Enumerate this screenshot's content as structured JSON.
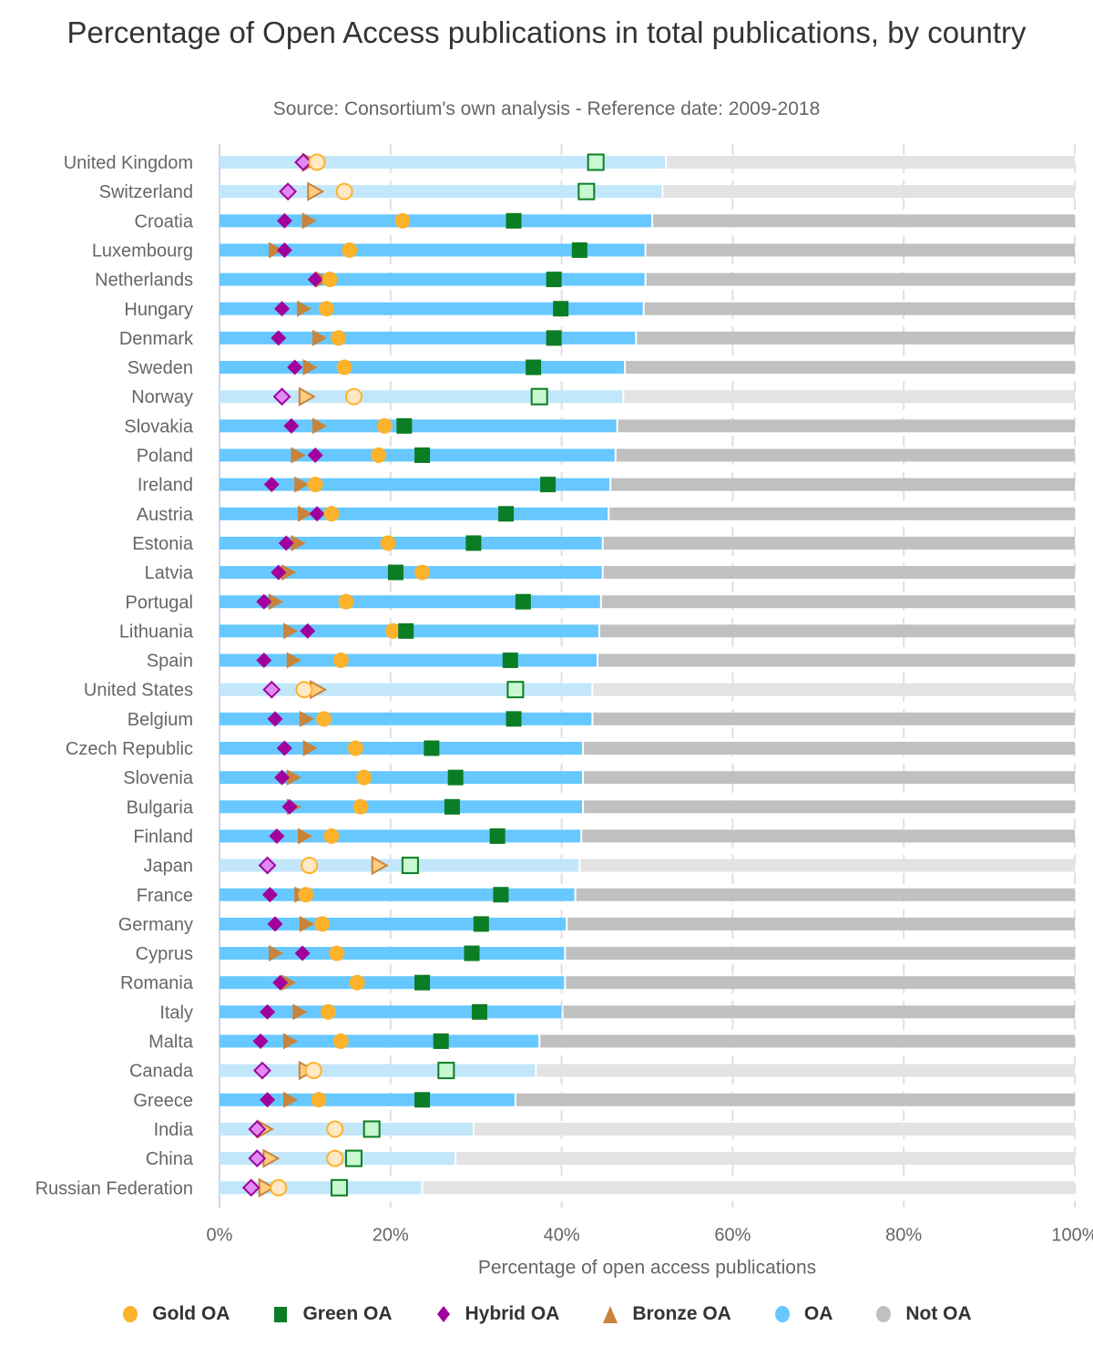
{
  "chart_data": {
    "type": "bar",
    "subtype": "horizontal stacked bar with overlaid markers",
    "title": "Percentage of Open Access publications in total publications, by country",
    "subtitle": "Source: Consortium's own analysis - Reference date: 2009-2018",
    "xlabel": "Percentage of open access publications",
    "ylabel": "",
    "xlim": [
      0,
      100
    ],
    "x_ticks": [
      "0%",
      "20%",
      "40%",
      "60%",
      "80%",
      "100%"
    ],
    "x_tick_values": [
      0,
      20,
      40,
      60,
      80,
      100
    ],
    "grid": "vertical dashed",
    "legend_position": "bottom",
    "legend": [
      {
        "name": "Gold OA",
        "symbol": "circle",
        "color": "#FDB22B"
      },
      {
        "name": "Green OA",
        "symbol": "square",
        "color": "#0B7D24"
      },
      {
        "name": "Hybrid OA",
        "symbol": "diamond",
        "color": "#A2009C"
      },
      {
        "name": "Bronze OA",
        "symbol": "triangle",
        "color": "#C8843A"
      },
      {
        "name": "OA",
        "symbol": "circle",
        "color": "#66C8FF"
      },
      {
        "name": "Not OA",
        "symbol": "circle",
        "color": "#C0C0C0"
      }
    ],
    "faded_colors": {
      "OA": "#C2E6FA",
      "Not OA": "#E3E3E3",
      "Gold OA": "#FFE8C4",
      "Green OA": "#C9F7CF",
      "Hybrid OA": "#E08AF4",
      "Bronze OA": "#FFCC80"
    },
    "categories": [
      "United Kingdom",
      "Switzerland",
      "Croatia",
      "Luxembourg",
      "Netherlands",
      "Hungary",
      "Denmark",
      "Sweden",
      "Norway",
      "Slovakia",
      "Poland",
      "Ireland",
      "Austria",
      "Estonia",
      "Latvia",
      "Portugal",
      "Lithuania",
      "Spain",
      "United States",
      "Belgium",
      "Czech Republic",
      "Slovenia",
      "Bulgaria",
      "Finland",
      "Japan",
      "France",
      "Germany",
      "Cyprus",
      "Romania",
      "Italy",
      "Malta",
      "Canada",
      "Greece",
      "India",
      "China",
      "Russian Federation"
    ],
    "highlighted": [
      false,
      false,
      true,
      true,
      true,
      true,
      true,
      true,
      false,
      true,
      true,
      true,
      true,
      true,
      true,
      true,
      true,
      true,
      false,
      true,
      true,
      true,
      true,
      true,
      false,
      true,
      true,
      true,
      true,
      true,
      true,
      false,
      true,
      false,
      false,
      false
    ],
    "series": [
      {
        "name": "OA",
        "kind": "bar",
        "values": [
          52.2,
          51.8,
          50.6,
          49.8,
          49.8,
          49.6,
          48.7,
          47.4,
          47.2,
          46.5,
          46.3,
          45.7,
          45.5,
          44.8,
          44.8,
          44.6,
          44.4,
          44.2,
          43.6,
          43.6,
          42.5,
          42.5,
          42.5,
          42.3,
          42.1,
          41.6,
          40.6,
          40.4,
          40.4,
          40.1,
          37.4,
          37.0,
          34.6,
          29.7,
          27.6,
          23.7
        ]
      },
      {
        "name": "Not OA",
        "kind": "bar",
        "values": [
          47.8,
          48.2,
          49.4,
          50.2,
          50.2,
          50.4,
          51.3,
          52.6,
          52.8,
          53.5,
          53.7,
          54.3,
          54.5,
          55.2,
          55.2,
          55.4,
          55.6,
          55.8,
          56.4,
          56.4,
          57.5,
          57.5,
          57.5,
          57.7,
          57.9,
          58.4,
          59.4,
          59.6,
          59.6,
          59.9,
          62.6,
          63.0,
          65.4,
          70.3,
          72.4,
          76.3
        ]
      },
      {
        "name": "Gold OA",
        "kind": "marker",
        "values": [
          11.4,
          14.6,
          21.4,
          15.2,
          12.9,
          12.5,
          13.9,
          14.6,
          15.7,
          19.3,
          18.6,
          11.2,
          13.1,
          19.7,
          23.7,
          14.8,
          20.3,
          14.2,
          9.9,
          12.2,
          15.9,
          16.9,
          16.5,
          13.1,
          10.5,
          10.1,
          12.0,
          13.7,
          16.1,
          12.7,
          14.2,
          11.0,
          11.6,
          13.5,
          13.5,
          6.9
        ]
      },
      {
        "name": "Green OA",
        "kind": "marker",
        "values": [
          44.0,
          42.9,
          34.4,
          42.1,
          39.1,
          39.9,
          39.1,
          36.7,
          37.4,
          21.6,
          23.7,
          38.4,
          33.5,
          29.7,
          20.6,
          35.5,
          21.8,
          34.0,
          34.6,
          34.4,
          24.8,
          27.6,
          27.2,
          32.5,
          22.3,
          32.9,
          30.6,
          29.5,
          23.7,
          30.4,
          25.9,
          26.5,
          23.7,
          17.8,
          15.7,
          14.0
        ]
      },
      {
        "name": "Hybrid OA",
        "kind": "marker",
        "values": [
          9.8,
          8.0,
          7.6,
          7.6,
          11.2,
          7.3,
          6.9,
          8.8,
          7.3,
          8.4,
          11.2,
          6.1,
          11.4,
          7.8,
          6.9,
          5.2,
          10.3,
          5.2,
          6.1,
          6.5,
          7.6,
          7.3,
          8.2,
          6.7,
          5.6,
          5.9,
          6.5,
          9.7,
          7.1,
          5.6,
          4.8,
          5.0,
          5.6,
          4.4,
          4.4,
          3.7
        ]
      },
      {
        "name": "Bronze OA",
        "kind": "marker",
        "values": [
          10.5,
          11.1,
          10.4,
          6.5,
          12.0,
          9.8,
          11.6,
          10.5,
          10.1,
          11.6,
          9.1,
          9.5,
          9.9,
          9.1,
          8.0,
          6.5,
          8.2,
          8.6,
          11.4,
          10.1,
          10.5,
          8.6,
          8.6,
          9.9,
          18.6,
          9.5,
          10.1,
          6.5,
          8.0,
          9.3,
          8.2,
          10.1,
          8.2,
          5.2,
          5.9,
          5.4
        ]
      }
    ]
  }
}
